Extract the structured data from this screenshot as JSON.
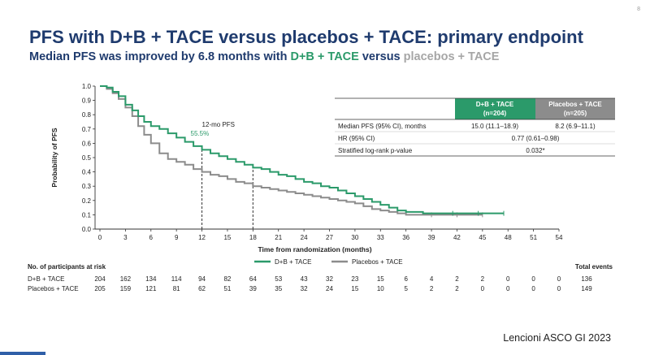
{
  "page": {
    "number": "8",
    "title": "PFS with D+B + TACE versus placebos + TACE: primary endpoint",
    "subtitle_prefix": "Median PFS was improved by 6.8 months with ",
    "subtitle_arm1": "D+B + TACE",
    "subtitle_mid": " versus ",
    "subtitle_arm2": "placebos + TACE",
    "citation": "Lencioni ASCO GI 2023"
  },
  "colors": {
    "arm1": "#2b9a6a",
    "arm2": "#8c8c8c",
    "header_arm1": "#2b9a6a",
    "header_arm2": "#8c8c8c",
    "title": "#1f3b6e"
  },
  "chart_data": {
    "type": "line",
    "title": "",
    "xlabel": "Time from randomization (months)",
    "ylabel": "Probability of PFS",
    "xlim": [
      0,
      54
    ],
    "ylim": [
      0,
      1
    ],
    "x_ticks": [
      "0",
      "3",
      "6",
      "9",
      "12",
      "15",
      "18",
      "21",
      "24",
      "27",
      "30",
      "33",
      "36",
      "39",
      "42",
      "45",
      "48",
      "51",
      "54"
    ],
    "y_ticks": [
      "0.0",
      "0.1",
      "0.2",
      "0.3",
      "0.4",
      "0.5",
      "0.6",
      "0.7",
      "0.8",
      "0.9",
      "1.0"
    ],
    "grid": false,
    "legend_position": "bottom-center",
    "series": [
      {
        "name": "D+B + TACE",
        "color": "#2b9a6a",
        "x": [
          0,
          0.8,
          1.5,
          2.2,
          3,
          3.8,
          4.5,
          5.2,
          6,
          7,
          8,
          9,
          10,
          11,
          12,
          13,
          14,
          15,
          16,
          17,
          18,
          19,
          20,
          21,
          22,
          23,
          24,
          25,
          26,
          27,
          28,
          29,
          30,
          31,
          32,
          33,
          34,
          35,
          36,
          37,
          38,
          39,
          40,
          41,
          42,
          43,
          44,
          45,
          46,
          47.5
        ],
        "y": [
          1.0,
          0.99,
          0.96,
          0.93,
          0.87,
          0.83,
          0.79,
          0.75,
          0.72,
          0.7,
          0.67,
          0.64,
          0.61,
          0.58,
          0.555,
          0.53,
          0.51,
          0.49,
          0.47,
          0.45,
          0.43,
          0.42,
          0.4,
          0.38,
          0.37,
          0.35,
          0.33,
          0.32,
          0.3,
          0.29,
          0.27,
          0.25,
          0.23,
          0.21,
          0.19,
          0.17,
          0.15,
          0.13,
          0.12,
          0.12,
          0.11,
          0.11,
          0.11,
          0.11,
          0.11,
          0.11,
          0.11,
          0.11,
          0.11,
          0.11
        ]
      },
      {
        "name": "Placebos + TACE",
        "color": "#8c8c8c",
        "x": [
          0,
          0.8,
          1.5,
          2.2,
          3,
          3.8,
          4.5,
          5.2,
          6,
          7,
          8,
          9,
          10,
          11,
          12,
          13,
          14,
          15,
          16,
          17,
          18,
          19,
          20,
          21,
          22,
          23,
          24,
          25,
          26,
          27,
          28,
          29,
          30,
          31,
          32,
          33,
          34,
          35,
          36,
          37,
          38,
          39,
          40,
          41,
          42,
          43,
          44,
          45
        ],
        "y": [
          1.0,
          0.98,
          0.95,
          0.91,
          0.85,
          0.79,
          0.72,
          0.66,
          0.6,
          0.53,
          0.49,
          0.47,
          0.45,
          0.42,
          0.4,
          0.38,
          0.37,
          0.35,
          0.33,
          0.32,
          0.3,
          0.29,
          0.28,
          0.27,
          0.26,
          0.25,
          0.24,
          0.23,
          0.22,
          0.21,
          0.2,
          0.19,
          0.18,
          0.16,
          0.14,
          0.13,
          0.12,
          0.11,
          0.1,
          0.1,
          0.1,
          0.1,
          0.1,
          0.1,
          0.1,
          0.1,
          0.1,
          0.1
        ]
      }
    ],
    "reference_lines": [
      {
        "x": 12,
        "y_top": 0.555
      },
      {
        "x": 18,
        "y_top": 0.43
      }
    ],
    "annotation": {
      "label": "12-mo PFS",
      "value": "55.5%",
      "x": 12,
      "y": 0.66
    }
  },
  "stats_table": {
    "headers": [
      {
        "line1": "D+B + TACE",
        "line2": "(n=204)"
      },
      {
        "line1": "Placebos + TACE",
        "line2": "(n=205)"
      }
    ],
    "rows": [
      {
        "label": "Median PFS (95% CI), months",
        "arm1": "15.0 (11.1–18.9)",
        "arm2": "8.2 (6.9–11.1)"
      },
      {
        "label": "HR (95% CI)",
        "shared": "0.77 (0.61–0.98)"
      },
      {
        "label": "Stratified log-rank p-value",
        "shared": "0.032*"
      }
    ]
  },
  "risk_table": {
    "title": "No. of participants at risk",
    "total_label": "Total events",
    "rows": [
      {
        "label": "D+B + TACE",
        "values": [
          "204",
          "162",
          "134",
          "114",
          "94",
          "82",
          "64",
          "53",
          "43",
          "32",
          "23",
          "15",
          "6",
          "4",
          "2",
          "2",
          "0",
          "0",
          "0"
        ],
        "total": "136"
      },
      {
        "label": "Placebos + TACE",
        "values": [
          "205",
          "159",
          "121",
          "81",
          "62",
          "51",
          "39",
          "35",
          "32",
          "24",
          "15",
          "10",
          "5",
          "2",
          "2",
          "0",
          "0",
          "0",
          "0"
        ],
        "total": "149"
      }
    ]
  }
}
